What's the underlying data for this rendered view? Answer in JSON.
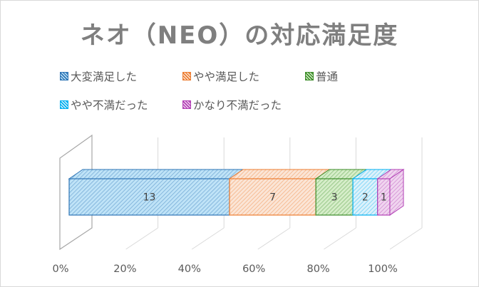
{
  "chart_data": {
    "type": "bar",
    "orientation": "horizontal",
    "stacked": "percent",
    "style": "3d",
    "title": "ネオ（NEO）の対応満足度",
    "categories": [
      ""
    ],
    "series": [
      {
        "name": "大変満足した",
        "values": [
          13
        ],
        "color": "#2e75b6",
        "fill": "#bfe3f7"
      },
      {
        "name": "やや満足した",
        "values": [
          7
        ],
        "color": "#ed7d31",
        "fill": "#fbe5d6"
      },
      {
        "name": "普通",
        "values": [
          3
        ],
        "color": "#3c8d2a",
        "fill": "#d5edc8"
      },
      {
        "name": "やや不満だった",
        "values": [
          2
        ],
        "color": "#00b0f0",
        "fill": "#dcf1fb"
      },
      {
        "name": "かなり不満だった",
        "values": [
          1
        ],
        "color": "#b23fb5",
        "fill": "#f0d5ef"
      }
    ],
    "x_ticks": [
      "0%",
      "20%",
      "40%",
      "60%",
      "80%",
      "100%"
    ],
    "xlim": [
      0,
      1
    ],
    "grid": true,
    "legend": "top"
  }
}
